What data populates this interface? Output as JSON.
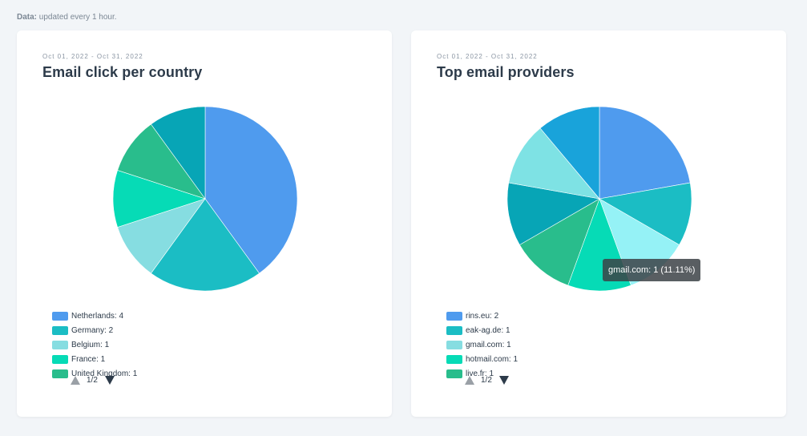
{
  "note": {
    "label": "Data:",
    "text": "updated every 1 hour."
  },
  "chart_data": [
    {
      "type": "pie",
      "date_range": "Oct 01, 2022 - Oct 31, 2022",
      "title": "Email click per country",
      "slices": [
        {
          "label": "Netherlands: 4",
          "value": 4,
          "color": "#4f9bee"
        },
        {
          "label": "Germany: 2",
          "value": 2,
          "color": "#1bbdc4"
        },
        {
          "label": "Belgium: 1",
          "value": 1,
          "color": "#86dde1"
        },
        {
          "label": "France: 1",
          "value": 1,
          "color": "#06dbb6"
        },
        {
          "label": "United Kingdom: 1",
          "value": 1,
          "color": "#29bd8c"
        },
        {
          "label": "",
          "value": 1,
          "color": "#07a5b6"
        }
      ],
      "pager": "1/2"
    },
    {
      "type": "pie",
      "date_range": "Oct 01, 2022 - Oct 31, 2022",
      "title": "Top email providers",
      "slices": [
        {
          "label": "rins.eu: 2",
          "value": 2,
          "color": "#4f9bee"
        },
        {
          "label": "eak-ag.de: 1",
          "value": 1,
          "color": "#1bbdc4"
        },
        {
          "label": "gmail.com: 1",
          "value": 1,
          "color": "#95f2f6"
        },
        {
          "label": "hotmail.com: 1",
          "value": 1,
          "color": "#06dbb6"
        },
        {
          "label": "live.fr: 1",
          "value": 1,
          "color": "#29bd8c"
        },
        {
          "label": "",
          "value": 1,
          "color": "#07a5b6"
        },
        {
          "label": "",
          "value": 1,
          "color": "#7ee2e4"
        },
        {
          "label": "",
          "value": 1,
          "color": "#19a3da"
        }
      ],
      "legend_swatch_override": {
        "2": "#86dde1"
      },
      "tooltip": "gmail.com: 1 (11.11%)",
      "pager": "1/2"
    }
  ]
}
